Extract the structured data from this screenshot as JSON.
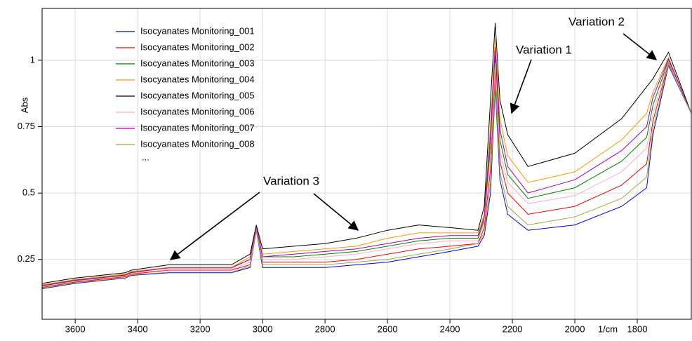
{
  "chart_data": {
    "type": "line",
    "y_label": "Abs",
    "x_label": "1/cm",
    "x": [
      3706,
      3600,
      3440,
      3420,
      3300,
      3100,
      3040,
      3020,
      3000,
      2900,
      2800,
      2700,
      2600,
      2500,
      2400,
      2310,
      2290,
      2270,
      2255,
      2240,
      2215,
      2150,
      2000,
      1850,
      1770,
      1750,
      1700,
      1627
    ],
    "xlim": [
      3706,
      1627
    ],
    "xticks": [
      3600,
      3400,
      3200,
      3000,
      2800,
      2600,
      2400,
      2200,
      2000,
      1800
    ],
    "ylim": [
      0.025,
      1.195
    ],
    "yticks": [
      0.25,
      0.5,
      0.75,
      1
    ],
    "grid": true,
    "legend_position": "upper-left",
    "legend_more": "...",
    "series": [
      {
        "name": "Isocyanates Monitoring_001",
        "color": "#0000ff",
        "values": [
          0.14,
          0.16,
          0.18,
          0.19,
          0.2,
          0.2,
          0.22,
          0.36,
          0.22,
          0.22,
          0.22,
          0.23,
          0.24,
          0.26,
          0.28,
          0.3,
          0.34,
          0.5,
          0.9,
          0.55,
          0.42,
          0.36,
          0.38,
          0.45,
          0.52,
          0.72,
          0.98,
          0.8
        ]
      },
      {
        "name": "Isocyanates Monitoring_002",
        "color": "#ff0000",
        "values": [
          0.145,
          0.165,
          0.185,
          0.195,
          0.21,
          0.21,
          0.23,
          0.365,
          0.24,
          0.24,
          0.24,
          0.25,
          0.27,
          0.29,
          0.3,
          0.31,
          0.37,
          0.59,
          0.96,
          0.62,
          0.5,
          0.42,
          0.45,
          0.53,
          0.61,
          0.77,
          0.99,
          0.8
        ]
      },
      {
        "name": "Isocyanates Monitoring_003",
        "color": "#008000",
        "values": [
          0.15,
          0.17,
          0.19,
          0.2,
          0.22,
          0.22,
          0.25,
          0.37,
          0.26,
          0.26,
          0.27,
          0.28,
          0.3,
          0.32,
          0.33,
          0.33,
          0.4,
          0.68,
          1.02,
          0.7,
          0.57,
          0.48,
          0.52,
          0.62,
          0.71,
          0.83,
          1.0,
          0.8
        ]
      },
      {
        "name": "Isocyanates Monitoring_004",
        "color": "#ff9900",
        "values": [
          0.155,
          0.175,
          0.195,
          0.205,
          0.22,
          0.22,
          0.26,
          0.375,
          0.27,
          0.28,
          0.29,
          0.3,
          0.33,
          0.35,
          0.35,
          0.35,
          0.42,
          0.76,
          1.08,
          0.78,
          0.64,
          0.54,
          0.58,
          0.7,
          0.8,
          0.88,
          1.01,
          0.8
        ]
      },
      {
        "name": "Isocyanates Monitoring_005",
        "color": "#000000",
        "values": [
          0.16,
          0.18,
          0.2,
          0.21,
          0.23,
          0.23,
          0.27,
          0.38,
          0.29,
          0.3,
          0.31,
          0.33,
          0.36,
          0.38,
          0.37,
          0.36,
          0.45,
          0.85,
          1.14,
          0.85,
          0.72,
          0.6,
          0.65,
          0.78,
          0.9,
          0.93,
          1.03,
          0.8
        ]
      },
      {
        "name": "Isocyanates Monitoring_006",
        "color": "#ffaacc",
        "values": [
          0.148,
          0.168,
          0.188,
          0.198,
          0.212,
          0.212,
          0.24,
          0.368,
          0.25,
          0.25,
          0.26,
          0.27,
          0.29,
          0.31,
          0.32,
          0.32,
          0.39,
          0.64,
          0.99,
          0.66,
          0.54,
          0.46,
          0.49,
          0.58,
          0.67,
          0.8,
          0.995,
          0.8
        ]
      },
      {
        "name": "Isocyanates Monitoring_007",
        "color": "#aa00aa",
        "values": [
          0.152,
          0.172,
          0.192,
          0.202,
          0.218,
          0.218,
          0.25,
          0.372,
          0.26,
          0.27,
          0.28,
          0.29,
          0.31,
          0.33,
          0.34,
          0.34,
          0.41,
          0.72,
          1.05,
          0.74,
          0.6,
          0.5,
          0.55,
          0.66,
          0.75,
          0.86,
          1.005,
          0.8
        ]
      },
      {
        "name": "Isocyanates Monitoring_008",
        "color": "#99aa44",
        "values": [
          0.142,
          0.162,
          0.182,
          0.192,
          0.202,
          0.202,
          0.225,
          0.362,
          0.23,
          0.23,
          0.23,
          0.24,
          0.25,
          0.27,
          0.29,
          0.31,
          0.35,
          0.54,
          0.92,
          0.58,
          0.45,
          0.38,
          0.41,
          0.48,
          0.56,
          0.74,
          0.985,
          0.8
        ]
      }
    ],
    "annotations": [
      "Variation 1",
      "Variation 2",
      "Variation 3"
    ]
  }
}
